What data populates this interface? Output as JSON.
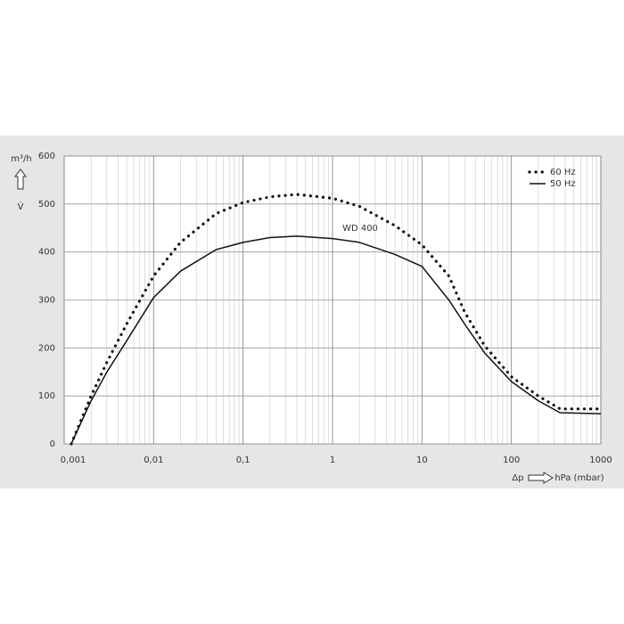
{
  "chart_data": {
    "type": "line",
    "x_log": true,
    "xlim": [
      0.001,
      1000
    ],
    "xticks": [
      {
        "value": 0.001,
        "label": "0,001"
      },
      {
        "value": 0.01,
        "label": "0,01"
      },
      {
        "value": 0.1,
        "label": "0,1"
      },
      1,
      10,
      100,
      1000
    ],
    "ylim": [
      0,
      600
    ],
    "yticks": [
      0,
      100,
      200,
      300,
      400,
      500,
      600
    ],
    "grid": true,
    "y_label": "m³/h",
    "y_symbol": "V̇",
    "x_label_symbol": "Δp",
    "x_label": "hPa (mbar)",
    "annotation": "WD 400",
    "legend": "upper right",
    "series": [
      {
        "name": "60 Hz",
        "color": "#111111",
        "style": "dotted",
        "x": [
          0.0012,
          0.002,
          0.003,
          0.005,
          0.01,
          0.02,
          0.05,
          0.1,
          0.2,
          0.4,
          1,
          2,
          5,
          10,
          20,
          30,
          50,
          100,
          200,
          350,
          1000
        ],
        "values": [
          0,
          100,
          170,
          250,
          350,
          420,
          480,
          503,
          515,
          520,
          512,
          495,
          455,
          415,
          350,
          275,
          205,
          140,
          100,
          73,
          73
        ]
      },
      {
        "name": "50 Hz",
        "color": "#111111",
        "style": "solid",
        "x": [
          0.0012,
          0.002,
          0.003,
          0.005,
          0.01,
          0.02,
          0.05,
          0.1,
          0.2,
          0.4,
          1,
          2,
          5,
          10,
          20,
          30,
          50,
          100,
          200,
          350,
          1000
        ],
        "values": [
          0,
          90,
          150,
          215,
          305,
          360,
          405,
          420,
          430,
          433,
          428,
          420,
          395,
          370,
          300,
          250,
          190,
          130,
          90,
          65,
          63
        ]
      }
    ]
  }
}
